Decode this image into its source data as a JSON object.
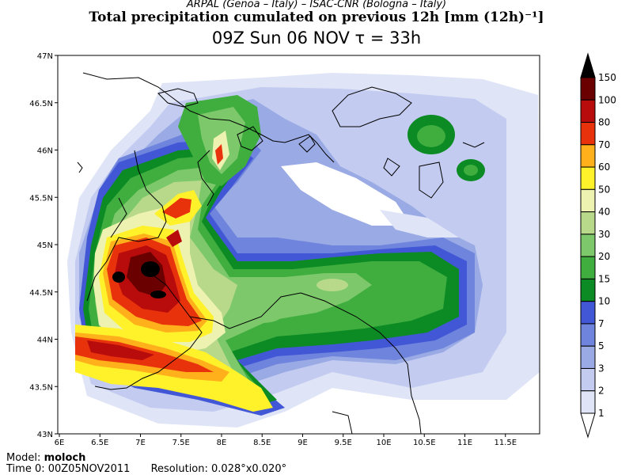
{
  "header": {
    "subtitle": "ARPAL (Genoa – Italy)   –   ISAC-CNR (Bologna – Italy)",
    "title": "Total precipitation cumulated on previous 12h [mm (12h)⁻¹]",
    "valid_time": "09Z Sun 06 NOV   τ = 33h"
  },
  "map": {
    "lat_ticks": [
      "47N",
      "46.5N",
      "46N",
      "45.5N",
      "45N",
      "44.5N",
      "44N",
      "43.5N",
      "43N"
    ],
    "lon_ticks": [
      "6E",
      "6.5E",
      "7E",
      "7.5E",
      "8E",
      "8.5E",
      "9E",
      "9.5E",
      "10E",
      "10.5E",
      "11E",
      "11.5E"
    ]
  },
  "colorbar": {
    "levels": [
      "1",
      "2",
      "3",
      "5",
      "7",
      "10",
      "15",
      "20",
      "30",
      "40",
      "50",
      "60",
      "70",
      "80",
      "100",
      "150"
    ],
    "colors": [
      "#ffffff",
      "#dfe4f7",
      "#c3ccf0",
      "#9aaae5",
      "#6f84dc",
      "#4257d6",
      "#0c8a24",
      "#3fae3f",
      "#7cc86a",
      "#b8d98a",
      "#eef2b0",
      "#fff12a",
      "#ffb01a",
      "#e8320c",
      "#b80c0c",
      "#6a0000",
      "#000000"
    ]
  },
  "footer": {
    "model_label": "Model:",
    "model_name": "moloch",
    "time0": "Time 0: 00Z05NOV2011",
    "resolution": "Resolution: 0.028°x0.020°"
  }
}
